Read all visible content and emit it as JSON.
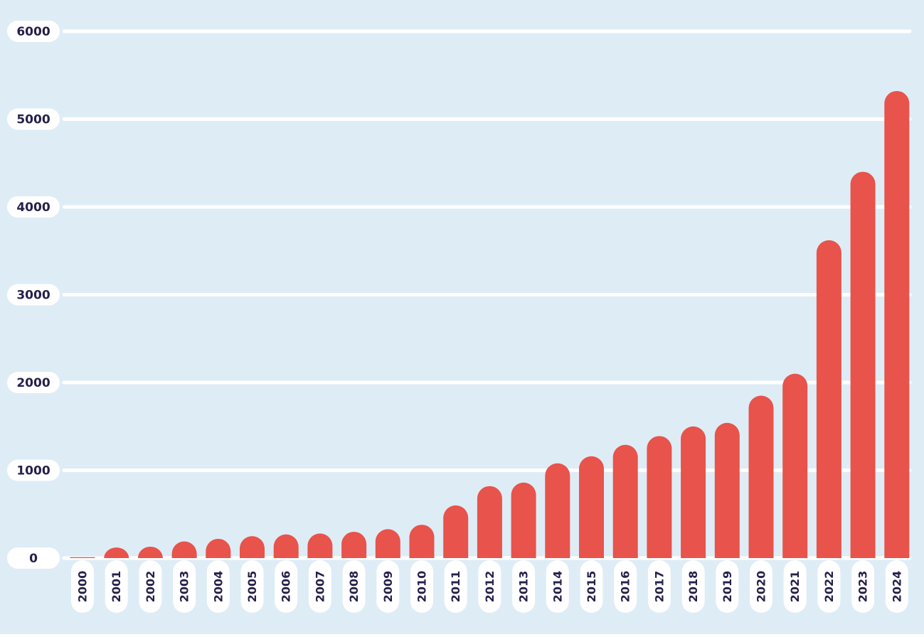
{
  "chart_data": {
    "type": "bar",
    "title": "",
    "xlabel": "",
    "ylabel": "",
    "categories": [
      "2000",
      "2001",
      "2002",
      "2003",
      "2004",
      "2005",
      "2006",
      "2007",
      "2008",
      "2009",
      "2010",
      "2011",
      "2012",
      "2013",
      "2014",
      "2015",
      "2016",
      "2017",
      "2018",
      "2019",
      "2020",
      "2021",
      "2022",
      "2023",
      "2024"
    ],
    "values": [
      10,
      120,
      130,
      190,
      220,
      250,
      270,
      280,
      300,
      330,
      380,
      600,
      820,
      860,
      1080,
      1160,
      1290,
      1390,
      1500,
      1540,
      1850,
      2100,
      3620,
      4400,
      5320
    ],
    "ylim": [
      0,
      6000
    ],
    "yticks": [
      0,
      1000,
      2000,
      3000,
      4000,
      5000,
      6000
    ],
    "ytick_labels": [
      "0",
      "1000",
      "2000",
      "3000",
      "4000",
      "5000",
      "6000"
    ],
    "grid": true,
    "colors": {
      "background": "#deecf6",
      "bar": "#e8534b",
      "gridline": "#ffffff",
      "label_pill": "#ffffff",
      "label_text": "#26204a"
    }
  }
}
